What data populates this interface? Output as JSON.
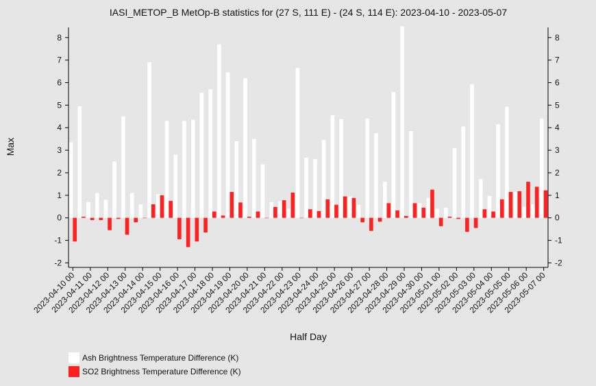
{
  "chart_data": {
    "type": "bar",
    "title": "IASI_METOP_B MetOp-B statistics for (27 S, 111 E) - (24 S, 114 E): 2023-04-10 - 2023-05-07",
    "xlabel": "Half Day",
    "ylabel": "Max",
    "ylim": [
      -2.2,
      8.45
    ],
    "yticks": [
      -2,
      -1,
      0,
      1,
      2,
      3,
      4,
      5,
      6,
      7,
      8
    ],
    "categories": [
      "2023-04-10 00",
      "2023-04-10 12",
      "2023-04-11 00",
      "2023-04-11 12",
      "2023-04-12 00",
      "2023-04-12 12",
      "2023-04-13 00",
      "2023-04-13 12",
      "2023-04-14 00",
      "2023-04-14 12",
      "2023-04-15 00",
      "2023-04-15 12",
      "2023-04-16 00",
      "2023-04-16 12",
      "2023-04-17 00",
      "2023-04-17 12",
      "2023-04-18 00",
      "2023-04-18 12",
      "2023-04-19 00",
      "2023-04-19 12",
      "2023-04-20 00",
      "2023-04-20 12",
      "2023-04-21 00",
      "2023-04-21 12",
      "2023-04-22 00",
      "2023-04-22 12",
      "2023-04-23 00",
      "2023-04-23 12",
      "2023-04-24 00",
      "2023-04-24 12",
      "2023-04-25 00",
      "2023-04-25 12",
      "2023-04-26 00",
      "2023-04-26 12",
      "2023-04-27 00",
      "2023-04-27 12",
      "2023-04-28 00",
      "2023-04-28 12",
      "2023-04-29 00",
      "2023-04-29 12",
      "2023-04-30 00",
      "2023-04-30 12",
      "2023-05-01 00",
      "2023-05-01 12",
      "2023-05-02 00",
      "2023-05-02 12",
      "2023-05-03 00",
      "2023-05-03 12",
      "2023-05-04 00",
      "2023-05-04 12",
      "2023-05-05 00",
      "2023-05-05 12",
      "2023-05-06 00",
      "2023-05-06 12",
      "2023-05-07 00"
    ],
    "tick_labels": [
      "2023-04-10 00",
      "2023-04-11 00",
      "2023-04-12 00",
      "2023-04-13 00",
      "2023-04-14 00",
      "2023-04-15 00",
      "2023-04-16 00",
      "2023-04-17 00",
      "2023-04-18 00",
      "2023-04-19 00",
      "2023-04-20 00",
      "2023-04-21 00",
      "2023-04-22 00",
      "2023-04-23 00",
      "2023-04-24 00",
      "2023-04-25 00",
      "2023-04-26 00",
      "2023-04-27 00",
      "2023-04-28 00",
      "2023-04-29 00",
      "2023-04-30 00",
      "2023-05-01 00",
      "2023-05-02 00",
      "2023-05-03 00",
      "2023-05-04 00",
      "2023-05-05 00",
      "2023-05-06 00",
      "2023-05-07 00"
    ],
    "series": [
      {
        "name": "Ash Brightness Temperature Difference (K)",
        "color": "#ffffff",
        "values": [
          3.35,
          4.95,
          0.7,
          1.1,
          0.8,
          2.5,
          4.5,
          1.1,
          0.6,
          6.9,
          1.05,
          4.3,
          2.8,
          4.3,
          4.35,
          5.55,
          5.7,
          7.7,
          6.45,
          3.4,
          6.2,
          3.5,
          2.38,
          0.7,
          0.75,
          0.4,
          6.65,
          2.67,
          2.6,
          3.45,
          4.55,
          4.38,
          0.95,
          0.58,
          4.4,
          3.75,
          1.6,
          5.58,
          8.5,
          3.85,
          0.65,
          0.88,
          0.4,
          0.45,
          3.1,
          4.05,
          5.93,
          1.72,
          0.97,
          4.15,
          4.93,
          1.15,
          0.48,
          0.6,
          4.4
        ]
      },
      {
        "name": "SO2 Brightness Temperature Difference (K)",
        "color": "#ff2020",
        "values": [
          -1.05,
          0.05,
          -0.1,
          -0.1,
          -0.55,
          -0.05,
          -0.75,
          -0.2,
          0.0,
          0.6,
          1.0,
          0.75,
          -0.95,
          -1.3,
          -1.05,
          -0.65,
          0.28,
          0.1,
          1.15,
          0.68,
          0.05,
          0.28,
          0.0,
          0.48,
          0.78,
          1.12,
          0.0,
          0.38,
          0.3,
          0.82,
          0.58,
          0.95,
          0.88,
          -0.2,
          -0.58,
          -0.17,
          0.65,
          0.33,
          0.08,
          0.65,
          0.45,
          1.25,
          -0.37,
          0.05,
          -0.05,
          -0.62,
          -0.45,
          0.38,
          0.28,
          0.82,
          1.15,
          1.18,
          1.6,
          1.38,
          1.22
        ]
      }
    ]
  }
}
